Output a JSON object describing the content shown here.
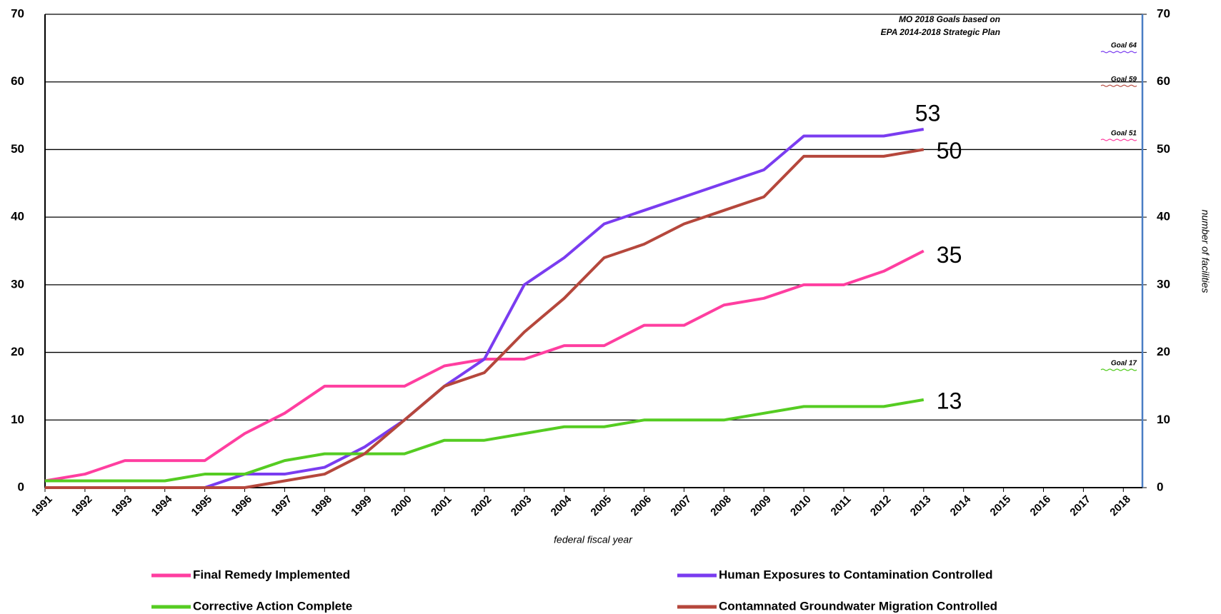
{
  "chart_data": {
    "type": "line",
    "xlabel": "federal fiscal year",
    "y2label": "number of facilities",
    "annotation": [
      "MO 2018 Goals based on",
      "EPA 2014-2018 Strategic Plan"
    ],
    "categories": [
      "1991",
      "1992",
      "1993",
      "1994",
      "1995",
      "1996",
      "1997",
      "1998",
      "1999",
      "2000",
      "2001",
      "2002",
      "2003",
      "2004",
      "2005",
      "2006",
      "2007",
      "2008",
      "2009",
      "2010",
      "2011",
      "2012",
      "2013",
      "2014",
      "2015",
      "2016",
      "2017",
      "2018"
    ],
    "series": [
      {
        "name": "Final Remedy Implemented",
        "color": "#ff3ea0",
        "values": [
          1,
          2,
          4,
          4,
          4,
          8,
          11,
          15,
          15,
          15,
          18,
          19,
          19,
          21,
          21,
          24,
          24,
          27,
          28,
          30,
          30,
          32,
          35,
          null,
          null,
          null,
          null,
          null
        ]
      },
      {
        "name": "Human Exposures to Contamination Controlled",
        "color": "#7a3cf0",
        "values": [
          0,
          0,
          0,
          0,
          0,
          2,
          2,
          3,
          6,
          10,
          15,
          19,
          30,
          34,
          39,
          41,
          43,
          45,
          47,
          52,
          52,
          52,
          53,
          null,
          null,
          null,
          null,
          null
        ]
      },
      {
        "name": "Corrective Action Complete",
        "color": "#55cc22",
        "values": [
          1,
          1,
          1,
          1,
          2,
          2,
          4,
          5,
          5,
          5,
          7,
          7,
          8,
          9,
          9,
          10,
          10,
          10,
          11,
          12,
          12,
          12,
          13,
          null,
          null,
          null,
          null,
          null
        ]
      },
      {
        "name": "Contamnated Groundwater Migration Controlled",
        "color": "#b5473c",
        "values": [
          0,
          0,
          0,
          0,
          0,
          0,
          1,
          2,
          5,
          10,
          15,
          17,
          23,
          28,
          34,
          36,
          39,
          41,
          43,
          49,
          49,
          49,
          50,
          null,
          null,
          null,
          null,
          null
        ]
      }
    ],
    "goals": [
      {
        "label": "Goal 64",
        "value": 64,
        "color": "#7a3cf0"
      },
      {
        "label": "Goal 59",
        "value": 59,
        "color": "#b5473c"
      },
      {
        "label": "Goal 51",
        "value": 51,
        "color": "#ff3ea0"
      },
      {
        "label": "Goal 17",
        "value": 17,
        "color": "#55cc22"
      }
    ],
    "ylim": [
      0,
      70
    ],
    "yticks": [
      0,
      10,
      20,
      30,
      40,
      50,
      60,
      70
    ],
    "y2lim": [
      0,
      70
    ],
    "y2ticks": [
      0,
      10,
      20,
      30,
      40,
      50,
      60,
      70
    ],
    "grid": true
  }
}
